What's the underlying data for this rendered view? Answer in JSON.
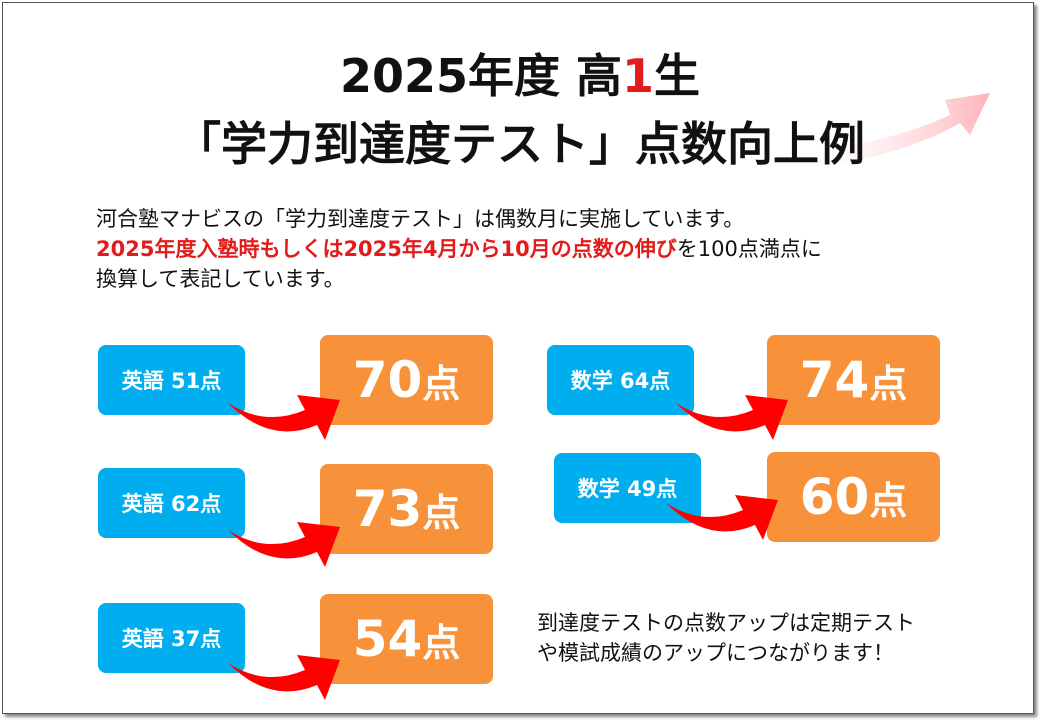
{
  "title": {
    "line1_pre": "2025年度 高",
    "line1_red": "1",
    "line1_post": "生",
    "line2": "「学力到達度テスト」点数向上例"
  },
  "intro": {
    "line1": "河合塾マナビスの「学力到達度テスト」は偶数月に実施しています。",
    "line2_red": "2025年度入塾時もしくは2025年4月から10月の点数の伸び",
    "line2_rest": "を100点満点に",
    "line3": "換算して表記しています。"
  },
  "examples": [
    {
      "before": "英語 51点",
      "after": "70",
      "unit": "点"
    },
    {
      "before": "英語 62点",
      "after": "73",
      "unit": "点"
    },
    {
      "before": "英語 37点",
      "after": "54",
      "unit": "点"
    },
    {
      "before": "数学 64点",
      "after": "74",
      "unit": "点"
    },
    {
      "before": "数学 49点",
      "after": "60",
      "unit": "点"
    }
  ],
  "closing": {
    "line1": "到達度テストの点数アップは定期テスト",
    "line2": "や模試成績のアップにつながります！"
  },
  "colors": {
    "blue": "#00aeef",
    "orange": "#f7923a",
    "red": "#e21b1b"
  }
}
